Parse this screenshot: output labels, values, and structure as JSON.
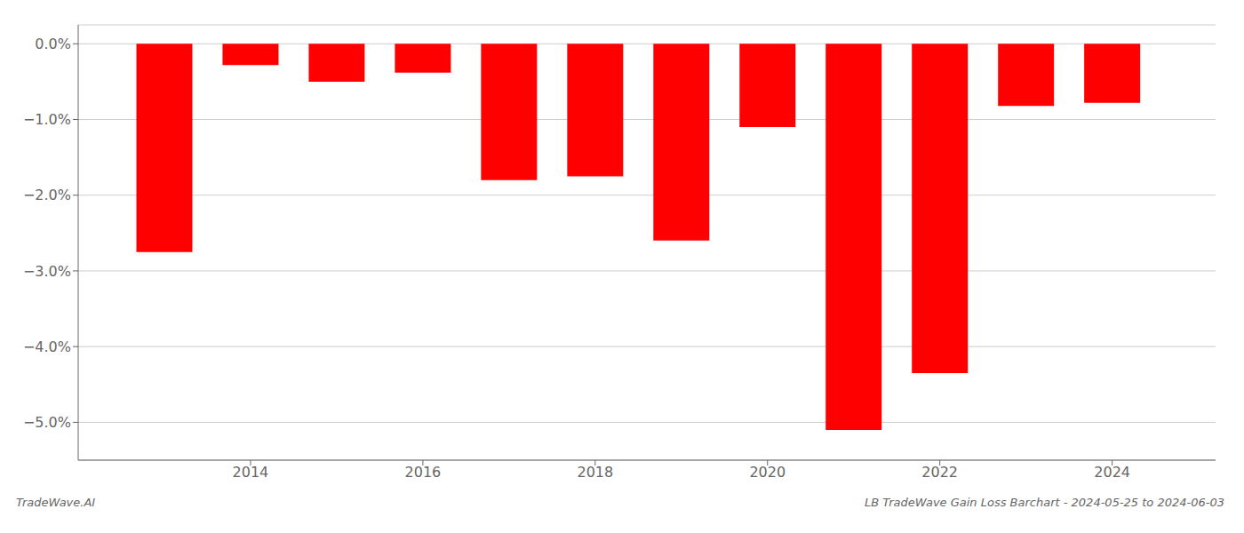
{
  "chart_data": {
    "type": "bar",
    "title": "LB TradeWave Gain Loss Barchart - 2024-05-25 to 2024-06-03",
    "annotations": [
      "TradeWave.AI"
    ],
    "x": [
      2013,
      2014,
      2015,
      2016,
      2017,
      2018,
      2019,
      2020,
      2021,
      2022,
      2023,
      2024
    ],
    "values": [
      -2.75,
      -0.28,
      -0.5,
      -0.38,
      -1.8,
      -1.75,
      -2.6,
      -1.1,
      -5.1,
      -4.35,
      -0.82,
      -0.78
    ],
    "color": "#ff0000",
    "xlim": [
      2012.0,
      2025.2
    ],
    "xticks": [
      2014,
      2016,
      2018,
      2020,
      2022,
      2024
    ],
    "ylim": [
      -5.5,
      0.25
    ],
    "yticks": [
      {
        "value": 0.0,
        "label": "0.0%"
      },
      {
        "value": -1.0,
        "label": "−1.0%"
      },
      {
        "value": -2.0,
        "label": "−2.0%"
      },
      {
        "value": -3.0,
        "label": "−3.0%"
      },
      {
        "value": -4.0,
        "label": "−4.0%"
      },
      {
        "value": -5.0,
        "label": "−5.0%"
      }
    ],
    "grid": true
  }
}
